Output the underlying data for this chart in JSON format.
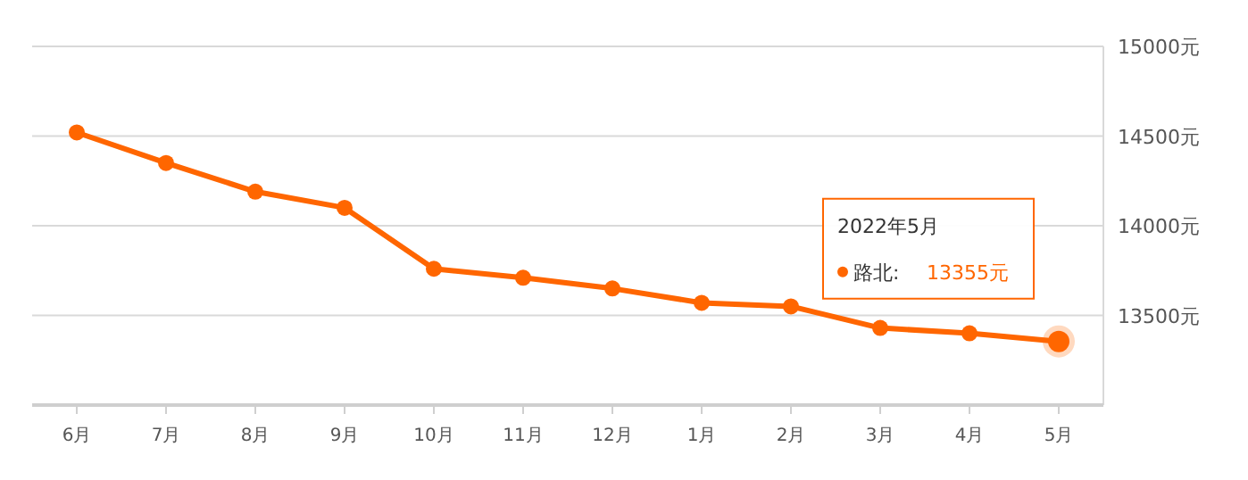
{
  "chart_data": {
    "type": "line",
    "categories": [
      "6月",
      "7月",
      "8月",
      "9月",
      "10月",
      "11月",
      "12月",
      "1月",
      "2月",
      "3月",
      "4月",
      "5月"
    ],
    "series": [
      {
        "name": "路北:",
        "color": "#ff6600",
        "values": [
          14520,
          14350,
          14190,
          14100,
          13760,
          13710,
          13650,
          13570,
          13550,
          13430,
          13400,
          13355
        ],
        "value_labels": [
          null,
          null,
          null,
          null,
          null,
          null,
          null,
          null,
          null,
          null,
          null,
          "13355元"
        ]
      }
    ],
    "ylim": [
      13000,
      15000
    ],
    "yticks": [
      {
        "value": 13000,
        "label": null
      },
      {
        "value": 13500,
        "label": "13500元"
      },
      {
        "value": 14000,
        "label": "14000元"
      },
      {
        "value": 14500,
        "label": "14500元"
      },
      {
        "value": 15000,
        "label": "15000元"
      }
    ],
    "grid": "y",
    "marker": "circle",
    "line_style": "solid",
    "annotations": [
      "2022年5月"
    ]
  }
}
